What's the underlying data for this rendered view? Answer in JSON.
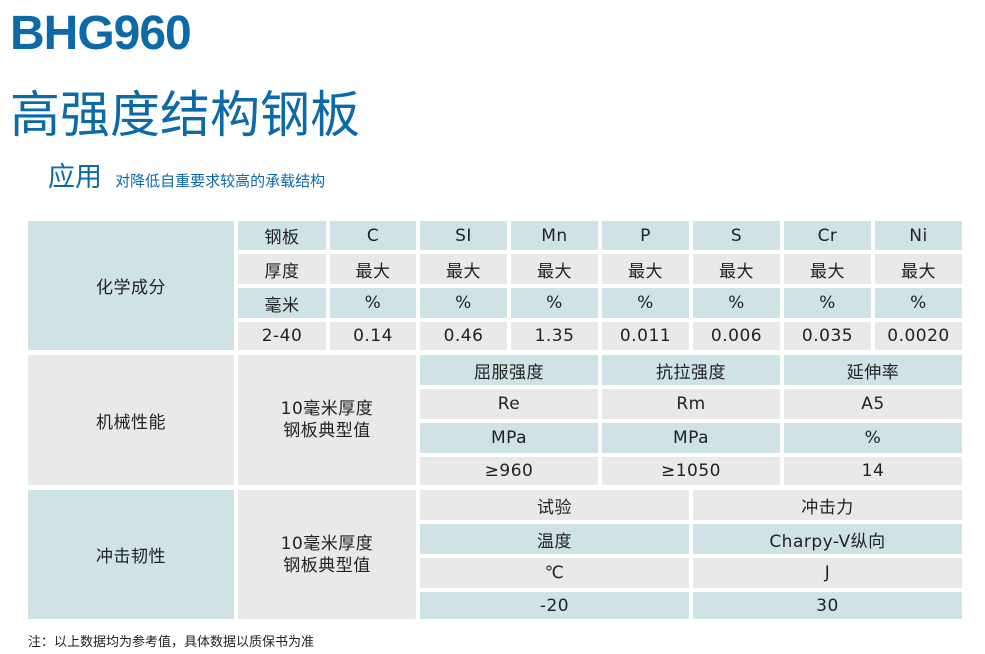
{
  "title_en": "BHG960",
  "title_cn": "高强度结构钢板",
  "application": {
    "label": "应用",
    "text": "对降低自重要求较高的承载结构"
  },
  "chemical": {
    "section": "化学成分",
    "headers": [
      "钢板",
      "C",
      "SI",
      "Mn",
      "P",
      "S",
      "Cr",
      "Ni"
    ],
    "row2": [
      "厚度",
      "最大",
      "最大",
      "最大",
      "最大",
      "最大",
      "最大",
      "最大"
    ],
    "row3": [
      "毫米",
      "%",
      "%",
      "%",
      "%",
      "%",
      "%",
      "%"
    ],
    "row4": [
      "2-40",
      "0.14",
      "0.46",
      "1.35",
      "0.011",
      "0.006",
      "0.035",
      "0.0020"
    ]
  },
  "mechanical": {
    "section": "机械性能",
    "desc_line1": "10毫米厚度",
    "desc_line2": "钢板典型值",
    "headers": [
      "屈服强度",
      "抗拉强度",
      "延伸率"
    ],
    "symbols": [
      "Re",
      "Rm",
      "A5"
    ],
    "units": [
      "MPa",
      "MPa",
      "%"
    ],
    "values": [
      "≥960",
      "≥1050",
      "14"
    ]
  },
  "impact": {
    "section": "冲击韧性",
    "desc_line1": "10毫米厚度",
    "desc_line2": "钢板典型值",
    "headers": [
      "试验",
      "冲击力"
    ],
    "row2": [
      "温度",
      "Charpy-V纵向"
    ],
    "row3": [
      "℃",
      "J"
    ],
    "row4": [
      "-20",
      "30"
    ]
  },
  "note": "注：以上数据均为参考值，具体数据以质保书为准",
  "colors": {
    "brand": "#0d6aa8",
    "cell_blue": "#cfe3e7",
    "cell_gray": "#e9e9e9"
  }
}
